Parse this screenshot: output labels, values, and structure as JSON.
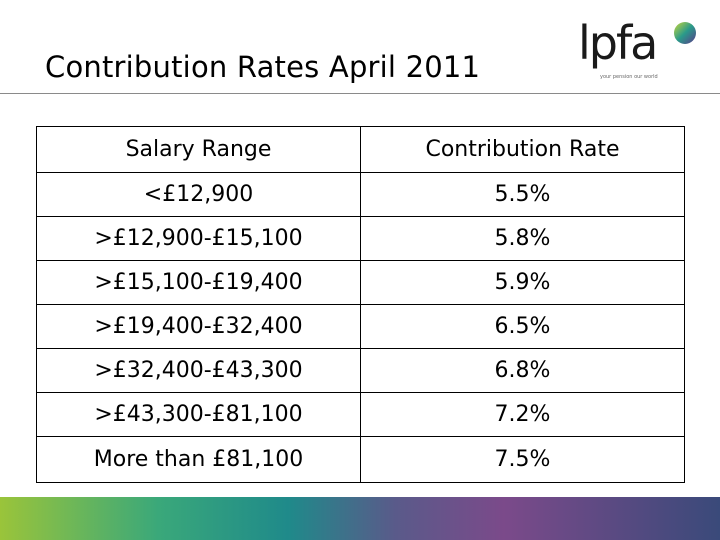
{
  "slide": {
    "title": "Contribution Rates April 2011",
    "logo_text": "lpfa",
    "logo_tagline": "your pension our world"
  },
  "table": {
    "headers": [
      "Salary Range",
      "Contribution Rate"
    ],
    "rows": [
      [
        "<£12,900",
        "5.5%"
      ],
      [
        ">£12,900-£15,100",
        "5.8%"
      ],
      [
        ">£15,100-£19,400",
        "5.9%"
      ],
      [
        ">£19,400-£32,400",
        "6.5%"
      ],
      [
        ">£32,400-£43,300",
        "6.8%"
      ],
      [
        ">£43,300-£81,100",
        "7.2%"
      ],
      [
        "More than £81,100",
        "7.5%"
      ]
    ]
  },
  "colors": {
    "logo_spot_top": "#c8d83a",
    "logo_spot_bottom": "#5a3a8a"
  }
}
